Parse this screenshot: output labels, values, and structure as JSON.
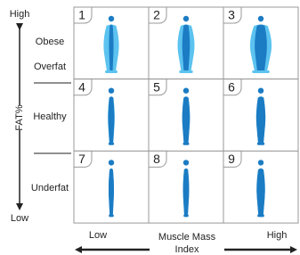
{
  "axis": {
    "y_title": "FAT%",
    "y_high": "High",
    "y_low": "Low",
    "x_title": [
      "Muscle Mass",
      "Index"
    ],
    "x_low": "Low",
    "x_high": "High"
  },
  "row_labels": [
    "Obese",
    "Overfat",
    "Healthy",
    "Underfat"
  ],
  "cells": [
    {
      "number": 1
    },
    {
      "number": 2
    },
    {
      "number": 3
    },
    {
      "number": 4
    },
    {
      "number": 5
    },
    {
      "number": 6
    },
    {
      "number": 7
    },
    {
      "number": 8
    },
    {
      "number": 9
    }
  ]
}
